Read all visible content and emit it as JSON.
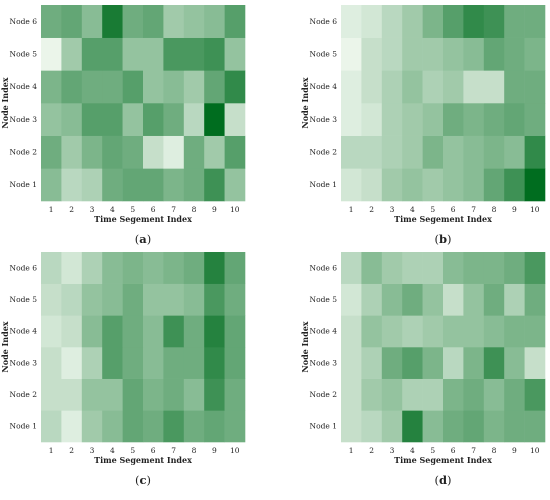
{
  "chart_data": [
    {
      "type": "heatmap",
      "panel_label": "(a)",
      "panel_letter": "a",
      "xlabel": "Time Segement Index",
      "ylabel": "Node Index",
      "x_ticks": [
        "1",
        "2",
        "3",
        "4",
        "5",
        "6",
        "7",
        "8",
        "9",
        "10"
      ],
      "y_ticks": [
        "Node 1",
        "Node 2",
        "Node 3",
        "Node 4",
        "Node 5",
        "Node 6"
      ],
      "value_range": [
        0,
        1
      ],
      "colors": {
        "low": "#f7fcf5",
        "high": "#006d1f"
      },
      "values": [
        [
          0.45,
          0.25,
          0.3,
          0.55,
          0.6,
          0.6,
          0.5,
          0.55,
          0.75,
          0.4
        ],
        [
          0.55,
          0.35,
          0.5,
          0.6,
          0.55,
          0.2,
          0.1,
          0.55,
          0.35,
          0.65
        ],
        [
          0.4,
          0.45,
          0.65,
          0.65,
          0.4,
          0.65,
          0.55,
          0.25,
          1.0,
          0.2
        ],
        [
          0.5,
          0.6,
          0.55,
          0.55,
          0.65,
          0.4,
          0.45,
          0.35,
          0.6,
          0.8
        ],
        [
          0.05,
          0.35,
          0.65,
          0.65,
          0.4,
          0.4,
          0.7,
          0.7,
          0.75,
          0.4
        ],
        [
          0.55,
          0.6,
          0.45,
          0.9,
          0.55,
          0.6,
          0.35,
          0.4,
          0.45,
          0.65
        ]
      ]
    },
    {
      "type": "heatmap",
      "panel_label": "(b)",
      "panel_letter": "b",
      "xlabel": "Time Segement Index",
      "ylabel": "Node Index",
      "x_ticks": [
        "1",
        "2",
        "3",
        "4",
        "5",
        "6",
        "7",
        "8",
        "9",
        "10"
      ],
      "y_ticks": [
        "Node 1",
        "Node 2",
        "Node 3",
        "Node 4",
        "Node 5",
        "Node 6"
      ],
      "value_range": [
        0,
        1
      ],
      "colors": {
        "low": "#f7fcf5",
        "high": "#006d1f"
      },
      "values": [
        [
          0.15,
          0.2,
          0.35,
          0.4,
          0.35,
          0.4,
          0.45,
          0.6,
          0.75,
          1.0
        ],
        [
          0.25,
          0.25,
          0.3,
          0.35,
          0.5,
          0.4,
          0.45,
          0.5,
          0.45,
          0.8
        ],
        [
          0.1,
          0.15,
          0.3,
          0.35,
          0.4,
          0.55,
          0.5,
          0.55,
          0.6,
          0.55
        ],
        [
          0.1,
          0.2,
          0.3,
          0.4,
          0.3,
          0.35,
          0.2,
          0.2,
          0.55,
          0.55
        ],
        [
          0.05,
          0.2,
          0.25,
          0.35,
          0.35,
          0.4,
          0.45,
          0.6,
          0.55,
          0.5
        ],
        [
          0.1,
          0.15,
          0.25,
          0.35,
          0.5,
          0.65,
          0.8,
          0.75,
          0.55,
          0.55
        ]
      ]
    },
    {
      "type": "heatmap",
      "panel_label": "(c)",
      "panel_letter": "c",
      "xlabel": "Time Segement Index",
      "ylabel": "Node Index",
      "x_ticks": [
        "1",
        "2",
        "3",
        "4",
        "5",
        "6",
        "7",
        "8",
        "9",
        "10"
      ],
      "y_ticks": [
        "Node 1",
        "Node 2",
        "Node 3",
        "Node 4",
        "Node 5",
        "Node 6"
      ],
      "value_range": [
        0,
        1
      ],
      "colors": {
        "low": "#f7fcf5",
        "high": "#006d1f"
      },
      "values": [
        [
          0.25,
          0.1,
          0.35,
          0.45,
          0.6,
          0.55,
          0.7,
          0.55,
          0.6,
          0.55
        ],
        [
          0.2,
          0.2,
          0.4,
          0.4,
          0.6,
          0.5,
          0.55,
          0.45,
          0.75,
          0.55
        ],
        [
          0.2,
          0.1,
          0.3,
          0.65,
          0.55,
          0.45,
          0.55,
          0.55,
          0.8,
          0.6
        ],
        [
          0.15,
          0.2,
          0.45,
          0.65,
          0.55,
          0.45,
          0.75,
          0.55,
          0.85,
          0.6
        ],
        [
          0.2,
          0.25,
          0.4,
          0.45,
          0.55,
          0.4,
          0.4,
          0.45,
          0.7,
          0.55
        ],
        [
          0.25,
          0.15,
          0.3,
          0.45,
          0.5,
          0.45,
          0.5,
          0.55,
          0.85,
          0.6
        ]
      ]
    },
    {
      "type": "heatmap",
      "panel_label": "(d)",
      "panel_letter": "d",
      "xlabel": "Time Segement Index",
      "ylabel": "Node Index",
      "x_ticks": [
        "1",
        "2",
        "3",
        "4",
        "5",
        "6",
        "7",
        "8",
        "9",
        "10"
      ],
      "y_ticks": [
        "Node 1",
        "Node 2",
        "Node 3",
        "Node 4",
        "Node 5",
        "Node 6"
      ],
      "value_range": [
        0,
        1
      ],
      "colors": {
        "low": "#f7fcf5",
        "high": "#006d1f"
      },
      "values": [
        [
          0.2,
          0.25,
          0.35,
          0.85,
          0.45,
          0.55,
          0.6,
          0.5,
          0.55,
          0.55
        ],
        [
          0.2,
          0.35,
          0.4,
          0.3,
          0.3,
          0.5,
          0.55,
          0.45,
          0.55,
          0.7
        ],
        [
          0.2,
          0.3,
          0.55,
          0.65,
          0.5,
          0.25,
          0.5,
          0.75,
          0.45,
          0.2
        ],
        [
          0.2,
          0.4,
          0.35,
          0.3,
          0.35,
          0.4,
          0.4,
          0.45,
          0.5,
          0.5
        ],
        [
          0.15,
          0.3,
          0.45,
          0.55,
          0.4,
          0.2,
          0.4,
          0.55,
          0.3,
          0.55
        ],
        [
          0.25,
          0.45,
          0.35,
          0.3,
          0.3,
          0.45,
          0.5,
          0.5,
          0.55,
          0.7
        ]
      ]
    }
  ]
}
